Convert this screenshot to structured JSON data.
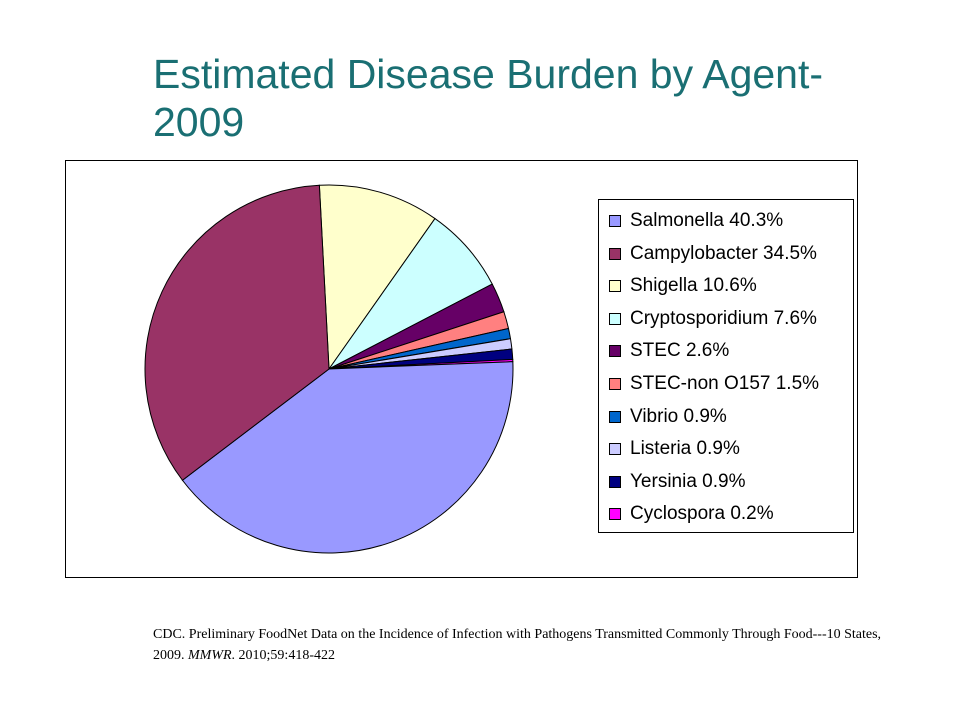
{
  "title": "Estimated Disease Burden by Agent-2009",
  "chart_data": {
    "type": "pie",
    "slices": [
      {
        "label": "Salmonella 40.3%",
        "value": 40.3,
        "color": "#9999ff"
      },
      {
        "label": "Campylobacter 34.5%",
        "value": 34.5,
        "color": "#993366"
      },
      {
        "label": "Shigella 10.6%",
        "value": 10.6,
        "color": "#ffffcc"
      },
      {
        "label": "Cryptosporidium 7.6%",
        "value": 7.6,
        "color": "#ccffff"
      },
      {
        "label": "STEC 2.6%",
        "value": 2.6,
        "color": "#660066"
      },
      {
        "label": "STEC-non O157 1.5%",
        "value": 1.5,
        "color": "#ff8080"
      },
      {
        "label": "Vibrio 0.9%",
        "value": 0.9,
        "color": "#0066cc"
      },
      {
        "label": "Listeria 0.9%",
        "value": 0.9,
        "color": "#ccccff"
      },
      {
        "label": "Yersinia  0.9%",
        "value": 0.9,
        "color": "#000080"
      },
      {
        "label": "Cyclospora 0.2%",
        "value": 0.2,
        "color": "#ff00ff"
      }
    ],
    "legend_position": "right"
  },
  "citation": {
    "text_before": "CDC. Preliminary  FoodNet Data on the Incidence of Infection with Pathogens Transmitted Commonly Through Food---10 States, 2009. ",
    "journal": "MMWR",
    "text_after": ". 2010;59:418-422"
  }
}
